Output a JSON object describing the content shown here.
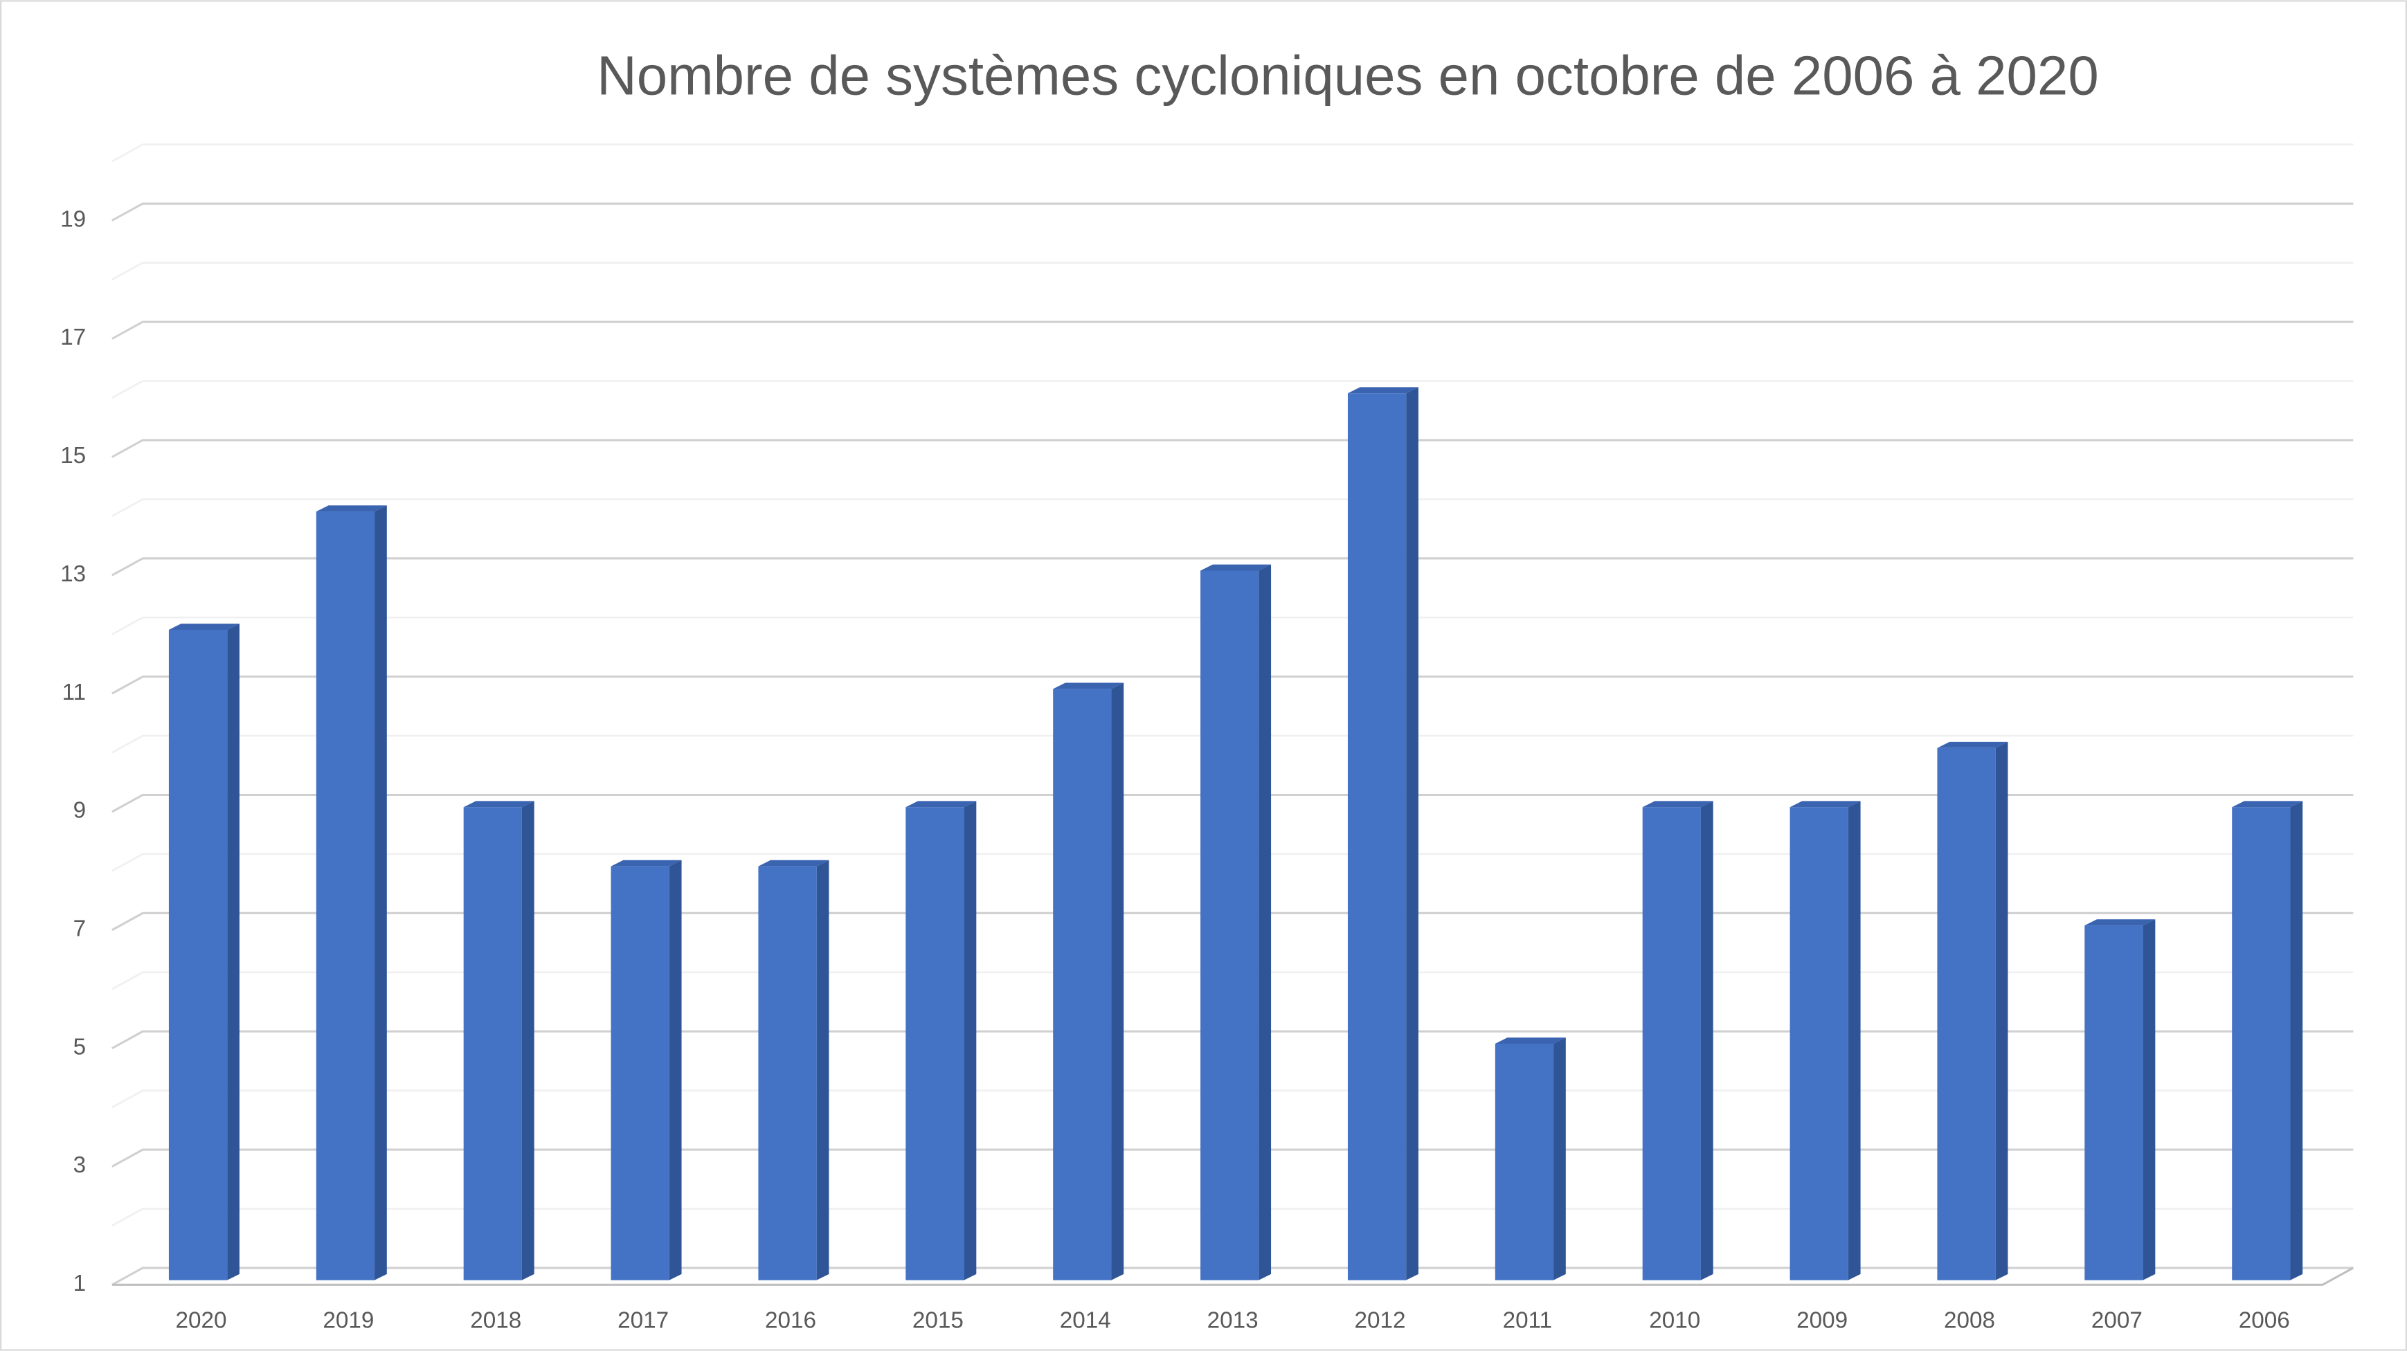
{
  "chart_data": {
    "type": "bar",
    "title": "Nombre de systèmes cycloniques en octobre de 2006 à 2020",
    "categories": [
      "2020",
      "2019",
      "2018",
      "2017",
      "2016",
      "2015",
      "2014",
      "2013",
      "2012",
      "2011",
      "2010",
      "2009",
      "2008",
      "2007",
      "2006"
    ],
    "values": [
      12,
      14,
      9,
      8,
      8,
      9,
      11,
      13,
      16,
      5,
      9,
      9,
      10,
      7,
      9
    ],
    "color": "#4472c4",
    "ylim": [
      1,
      20
    ],
    "yticks": [
      1,
      3,
      5,
      7,
      9,
      11,
      13,
      15,
      17,
      19
    ],
    "minor_yticks": [
      2,
      4,
      6,
      8,
      10,
      12,
      14,
      16,
      18,
      20
    ],
    "grid": true
  }
}
